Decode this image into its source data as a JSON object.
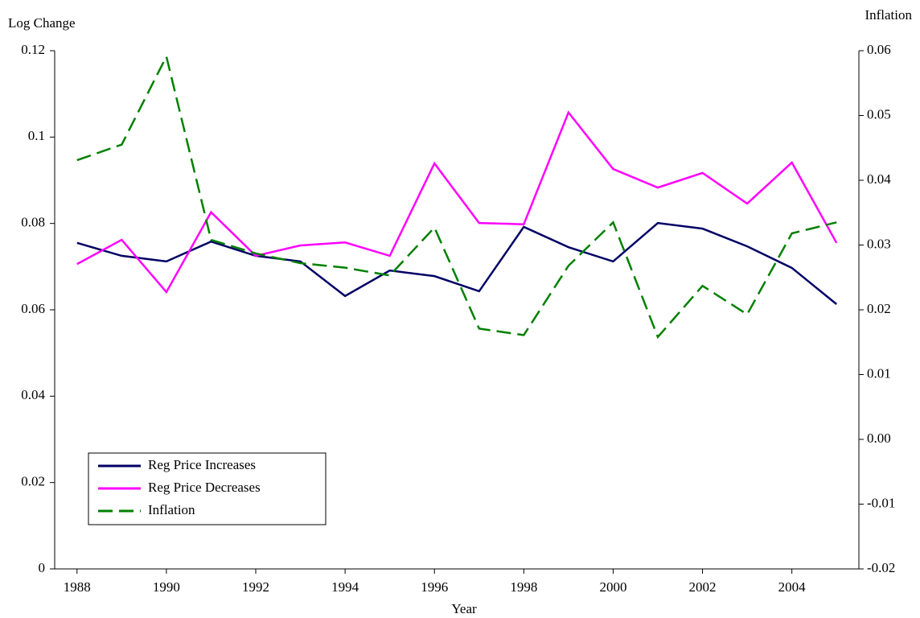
{
  "chart_data": {
    "type": "line",
    "y_label": "Log Change",
    "y2_label": "Inflation",
    "x_label": "Year",
    "x": [
      1988,
      1989,
      1990,
      1991,
      1992,
      1993,
      1994,
      1995,
      1996,
      1997,
      1998,
      1999,
      2000,
      2001,
      2002,
      2003,
      2004,
      2005
    ],
    "xlim": [
      1987.5,
      2005.5
    ],
    "xticks": [
      1988,
      1990,
      1992,
      1994,
      1996,
      1998,
      2000,
      2002,
      2004
    ],
    "ylim": [
      0,
      0.12
    ],
    "yticks": [
      0,
      0.02,
      0.04,
      0.06,
      0.08,
      0.1,
      0.12
    ],
    "y2lim": [
      -0.02,
      0.06
    ],
    "y2ticks": [
      -0.02,
      -0.01,
      {
        "value": 0,
        "label": "0.00"
      },
      0.01,
      0.02,
      0.03,
      0.04,
      0.05,
      0.06
    ],
    "legend": "lower left",
    "series": [
      {
        "name": "Reg Price Increases",
        "color": "#000066",
        "dash": "solid",
        "values": [
          0.0755,
          0.0725,
          0.0712,
          0.0758,
          0.0725,
          0.0712,
          0.0632,
          0.0691,
          0.0678,
          0.0643,
          0.0792,
          0.0745,
          0.0712,
          0.0801,
          0.0788,
          0.0747,
          0.0697,
          0.0613
        ]
      },
      {
        "name": "Reg Price Decreases",
        "color": "#ff00ff",
        "dash": "solid",
        "values": [
          0.0706,
          0.0762,
          0.0641,
          0.0826,
          0.0725,
          0.0749,
          0.0756,
          0.0725,
          0.0939,
          0.0801,
          0.0798,
          0.1057,
          0.0926,
          0.0883,
          0.0917,
          0.0846,
          0.0941,
          0.0755
        ]
      },
      {
        "name": "Inflation",
        "color": "#008000",
        "dash": "dashed",
        "axis": "y2",
        "values": [
          0.0431,
          0.0455,
          0.0591,
          0.0308,
          0.0287,
          0.0272,
          0.0265,
          0.0253,
          0.0327,
          0.0171,
          0.0161,
          0.0268,
          0.0335,
          0.0158,
          0.0237,
          0.0193,
          0.0318,
          0.0335
        ]
      }
    ]
  }
}
